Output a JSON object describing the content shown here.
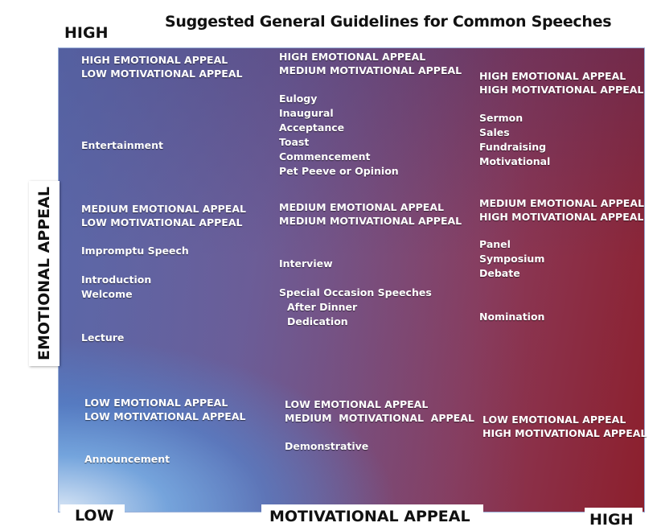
{
  "title": "Suggested General Guidelines for Common Speeches",
  "y_axis": {
    "label": "EMOTIONAL APPEAL",
    "high": "HIGH"
  },
  "x_axis": {
    "label": "MOTIVATIONAL APPEAL",
    "low": "LOW",
    "high": "HIGH"
  },
  "colors": {
    "high_high": "#8c1f2c",
    "low_low": "#e1eefa",
    "mid": "#7a5386"
  },
  "cells": {
    "top_left": {
      "header": [
        "HIGH EMOTIONAL APPEAL",
        "LOW MOTIVATIONAL APPEAL"
      ],
      "items": [
        "Entertainment"
      ]
    },
    "top_mid": {
      "header": [
        "HIGH EMOTIONAL APPEAL",
        "MEDIUM MOTIVATIONAL APPEAL"
      ],
      "items": [
        "Eulogy",
        "Inaugural",
        "Acceptance",
        "Toast",
        "Commencement",
        "Pet Peeve or Opinion"
      ]
    },
    "top_right": {
      "header": [
        "HIGH EMOTIONAL APPEAL",
        "HIGH MOTIVATIONAL APPEAL"
      ],
      "items": [
        "Sermon",
        "Sales",
        "Fundraising",
        "Motivational"
      ]
    },
    "mid_left": {
      "header": [
        "MEDIUM EMOTIONAL APPEAL",
        "LOW MOTIVATIONAL APPEAL"
      ],
      "items": [
        "Impromptu Speech",
        "Introduction",
        "Welcome",
        "Lecture"
      ]
    },
    "mid_mid": {
      "header": [
        "MEDIUM EMOTIONAL APPEAL",
        "MEDIUM MOTIVATIONAL APPEAL"
      ],
      "items": [
        "Interview",
        "Special Occasion Speeches",
        "After Dinner",
        "Dedication"
      ]
    },
    "mid_right": {
      "header": [
        "MEDIUM EMOTIONAL APPEAL",
        "HIGH MOTIVATIONAL APPEAL"
      ],
      "items": [
        "Panel",
        "Symposium",
        "Debate",
        "Nomination"
      ]
    },
    "bot_left": {
      "header": [
        "LOW EMOTIONAL APPEAL",
        "LOW MOTIVATIONAL APPEAL"
      ],
      "items": [
        "Announcement"
      ]
    },
    "bot_mid": {
      "header": [
        "LOW EMOTIONAL APPEAL",
        "MEDIUM  MOTIVATIONAL  APPEAL"
      ],
      "items": [
        "Demonstrative"
      ]
    },
    "bot_right": {
      "header": [
        "LOW EMOTIONAL APPEAL",
        "HIGH MOTIVATIONAL APPEAL"
      ],
      "items": []
    }
  }
}
